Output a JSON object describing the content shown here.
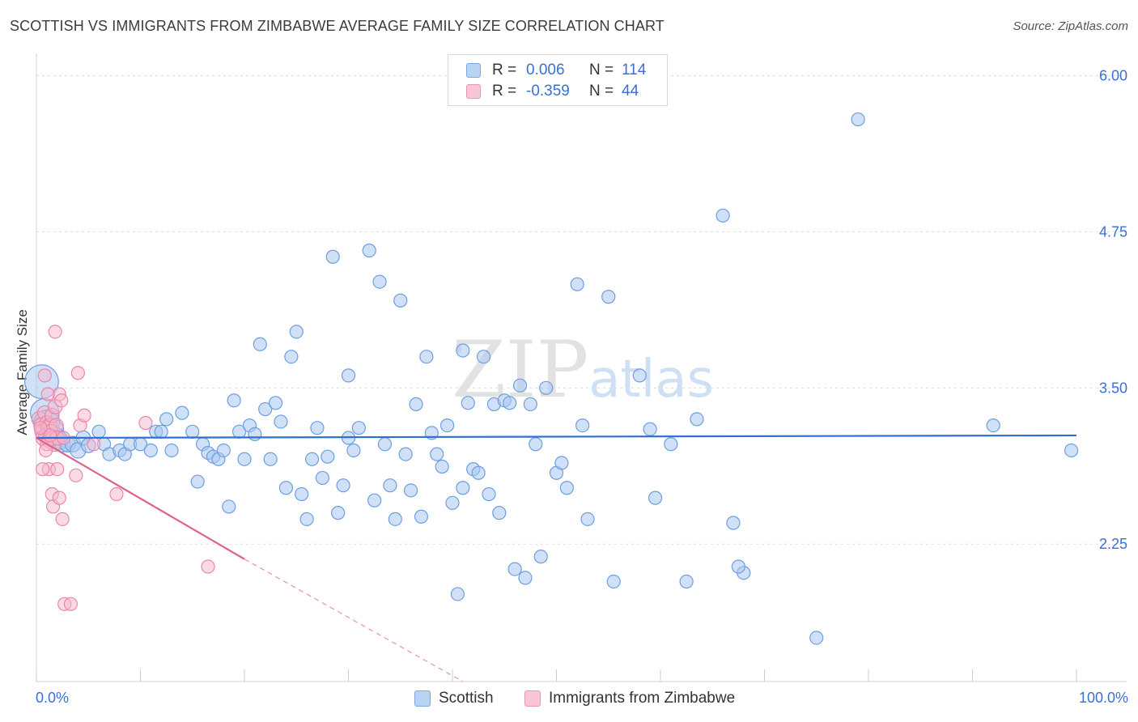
{
  "title": "SCOTTISH VS IMMIGRANTS FROM ZIMBABWE AVERAGE FAMILY SIZE CORRELATION CHART",
  "source": "Source: ZipAtlas.com",
  "watermark": "ZIPatlas",
  "colors": {
    "scottish_fill": "#a9c8f0",
    "scottish_stroke": "#6d9ee0",
    "scottish_line": "#2f6fd0",
    "zimbabwe_fill": "#f5b8cc",
    "zimbabwe_stroke": "#ea86a8",
    "zimbabwe_line": "#e0608e",
    "tick_label": "#3a6fd8",
    "grid": "#dcdcdc"
  },
  "legend": {
    "rows": [
      {
        "r_label": "R =",
        "r_value": "0.006",
        "n_label": "N =",
        "n_value": "114"
      },
      {
        "r_label": "R =",
        "r_value": "-0.359",
        "n_label": "N =",
        "n_value": "44"
      }
    ]
  },
  "chart_data": {
    "type": "scatter",
    "title": "SCOTTISH VS IMMIGRANTS FROM ZIMBABWE AVERAGE FAMILY SIZE CORRELATION CHART",
    "xlabel": "",
    "ylabel": "Average Family Size",
    "x_tick_labels": [
      "0.0%",
      "100.0%"
    ],
    "y_tick_labels": [
      "6.00",
      "4.75",
      "3.50",
      "2.25"
    ],
    "y_ticks": [
      6.0,
      4.75,
      3.5,
      2.25
    ],
    "xlim": [
      0,
      100
    ],
    "ylim": [
      1.15,
      6.1
    ],
    "grid": true,
    "legend_position": "top-center",
    "series": [
      {
        "name": "Scottish",
        "r": 0.006,
        "n": 114,
        "trend": {
          "x0": 0.0,
          "y0": 3.1,
          "x1": 100.0,
          "y1": 3.12
        },
        "points": [
          [
            0.5,
            3.55,
            26
          ],
          [
            0.8,
            3.3,
            22
          ],
          [
            1.0,
            3.22,
            20
          ],
          [
            1.5,
            3.16,
            18
          ],
          [
            1.8,
            3.1,
            16
          ],
          [
            2.2,
            3.08,
            14
          ],
          [
            2.5,
            3.05,
            12
          ],
          [
            3.0,
            3.05,
            12
          ],
          [
            3.5,
            3.05,
            12
          ],
          [
            4.0,
            3.0,
            12
          ],
          [
            4.5,
            3.1,
            11
          ],
          [
            5.0,
            3.04,
            11
          ],
          [
            6.0,
            3.15,
            10
          ],
          [
            6.5,
            3.05,
            10
          ],
          [
            7.0,
            2.97,
            10
          ],
          [
            8.0,
            3.0,
            10
          ],
          [
            8.5,
            2.97,
            10
          ],
          [
            9.0,
            3.05,
            10
          ],
          [
            10.0,
            3.05,
            10
          ],
          [
            11.0,
            3.0,
            10
          ],
          [
            11.5,
            3.15,
            10
          ],
          [
            12.0,
            3.15,
            10
          ],
          [
            12.5,
            3.25,
            10
          ],
          [
            13.0,
            3.0,
            10
          ],
          [
            14.0,
            3.3,
            10
          ],
          [
            15.0,
            3.15,
            10
          ],
          [
            15.5,
            2.75,
            10
          ],
          [
            16.0,
            3.05,
            10
          ],
          [
            16.5,
            2.98,
            10
          ],
          [
            17.0,
            2.95,
            10
          ],
          [
            17.5,
            2.93,
            10
          ],
          [
            18.0,
            3.0,
            10
          ],
          [
            18.5,
            2.55,
            10
          ],
          [
            19.0,
            3.4,
            10
          ],
          [
            19.5,
            3.15,
            10
          ],
          [
            20.0,
            2.93,
            10
          ],
          [
            20.5,
            3.2,
            10
          ],
          [
            21.0,
            3.13,
            10
          ],
          [
            21.5,
            3.85,
            10
          ],
          [
            22.0,
            3.33,
            10
          ],
          [
            22.5,
            2.93,
            10
          ],
          [
            23.0,
            3.38,
            10
          ],
          [
            23.5,
            3.23,
            10
          ],
          [
            24.0,
            2.7,
            10
          ],
          [
            24.5,
            3.75,
            10
          ],
          [
            25.0,
            3.95,
            10
          ],
          [
            25.5,
            2.65,
            10
          ],
          [
            26.0,
            2.45,
            10
          ],
          [
            26.5,
            2.93,
            10
          ],
          [
            27.0,
            3.18,
            10
          ],
          [
            27.5,
            2.78,
            10
          ],
          [
            28.0,
            2.95,
            10
          ],
          [
            28.5,
            4.55,
            10
          ],
          [
            29.0,
            2.5,
            10
          ],
          [
            29.5,
            2.72,
            10
          ],
          [
            30.0,
            3.6,
            10
          ],
          [
            30.5,
            3.0,
            10
          ],
          [
            31.0,
            3.18,
            10
          ],
          [
            32.0,
            4.6,
            10
          ],
          [
            32.5,
            2.6,
            10
          ],
          [
            33.0,
            4.35,
            10
          ],
          [
            33.5,
            3.05,
            10
          ],
          [
            34.0,
            2.72,
            10
          ],
          [
            34.5,
            2.45,
            10
          ],
          [
            35.0,
            4.2,
            10
          ],
          [
            35.5,
            2.97,
            10
          ],
          [
            36.0,
            2.68,
            10
          ],
          [
            36.5,
            3.37,
            10
          ],
          [
            37.0,
            2.47,
            10
          ],
          [
            37.5,
            3.75,
            10
          ],
          [
            38.0,
            3.14,
            10
          ],
          [
            38.5,
            2.97,
            10
          ],
          [
            39.0,
            2.87,
            10
          ],
          [
            39.5,
            3.2,
            10
          ],
          [
            40.0,
            2.58,
            10
          ],
          [
            40.5,
            1.85,
            10
          ],
          [
            41.0,
            2.7,
            10
          ],
          [
            41.5,
            3.38,
            10
          ],
          [
            41.0,
            3.8,
            10
          ],
          [
            42.0,
            2.85,
            10
          ],
          [
            42.5,
            2.82,
            10
          ],
          [
            43.0,
            3.75,
            10
          ],
          [
            43.5,
            2.65,
            10
          ],
          [
            44.0,
            3.37,
            10
          ],
          [
            44.5,
            2.5,
            10
          ],
          [
            45.0,
            3.4,
            10
          ],
          [
            45.5,
            3.38,
            10
          ],
          [
            46.0,
            2.05,
            10
          ],
          [
            46.5,
            3.52,
            10
          ],
          [
            47.0,
            1.98,
            10
          ],
          [
            47.5,
            3.37,
            10
          ],
          [
            48.0,
            3.05,
            10
          ],
          [
            48.5,
            2.15,
            10
          ],
          [
            49.0,
            3.5,
            10
          ],
          [
            50.0,
            2.82,
            10
          ],
          [
            50.5,
            2.9,
            10
          ],
          [
            51.0,
            2.7,
            10
          ],
          [
            52.0,
            4.33,
            10
          ],
          [
            55.0,
            4.23,
            10
          ],
          [
            55.5,
            1.95,
            10
          ],
          [
            58.0,
            3.6,
            10
          ],
          [
            59.0,
            3.17,
            10
          ],
          [
            59.5,
            2.62,
            10
          ],
          [
            61.0,
            3.05,
            10
          ],
          [
            63.5,
            3.25,
            10
          ],
          [
            66.0,
            4.88,
            10
          ],
          [
            67.0,
            2.42,
            10
          ],
          [
            68.0,
            2.02,
            10
          ],
          [
            79.0,
            5.65,
            10
          ],
          [
            92.0,
            3.2,
            10
          ],
          [
            99.5,
            3.0,
            10
          ],
          [
            75.0,
            1.5,
            10
          ],
          [
            67.5,
            2.07,
            10
          ],
          [
            62.5,
            1.95,
            10
          ],
          [
            53.0,
            2.45,
            10
          ],
          [
            52.5,
            3.2,
            10
          ],
          [
            30.0,
            3.1,
            10
          ]
        ]
      },
      {
        "name": "Immigrants from Zimbabwe",
        "r": -0.359,
        "n": 44,
        "trend": {
          "x0": 0.0,
          "y0": 3.1,
          "x1": 20.0,
          "y1": 2.13
        },
        "trend_dashed": {
          "x0": 20.0,
          "y0": 2.13,
          "x1": 41.0,
          "y1": 1.15
        },
        "points": [
          [
            0.3,
            3.25,
            12
          ],
          [
            0.5,
            3.2,
            12
          ],
          [
            0.6,
            3.15,
            12
          ],
          [
            0.7,
            3.1,
            12
          ],
          [
            0.8,
            3.3,
            11
          ],
          [
            0.9,
            3.12,
            11
          ],
          [
            1.0,
            3.22,
            11
          ],
          [
            1.1,
            3.18,
            11
          ],
          [
            1.2,
            3.08,
            11
          ],
          [
            1.3,
            3.2,
            11
          ],
          [
            1.4,
            3.15,
            11
          ],
          [
            1.5,
            3.28,
            11
          ],
          [
            1.6,
            3.1,
            11
          ],
          [
            1.7,
            3.05,
            11
          ],
          [
            1.8,
            3.35,
            11
          ],
          [
            1.9,
            3.2,
            11
          ],
          [
            2.0,
            3.1,
            11
          ],
          [
            2.2,
            3.45,
            10
          ],
          [
            2.4,
            3.4,
            10
          ],
          [
            2.6,
            3.1,
            10
          ],
          [
            0.8,
            3.6,
            10
          ],
          [
            1.0,
            3.05,
            10
          ],
          [
            1.2,
            2.85,
            10
          ],
          [
            1.5,
            2.65,
            10
          ],
          [
            1.6,
            2.55,
            10
          ],
          [
            2.0,
            2.85,
            10
          ],
          [
            2.2,
            2.62,
            10
          ],
          [
            2.5,
            2.45,
            10
          ],
          [
            2.7,
            1.77,
            10
          ],
          [
            3.3,
            1.77,
            10
          ],
          [
            3.8,
            2.8,
            10
          ],
          [
            4.0,
            3.62,
            10
          ],
          [
            4.2,
            3.2,
            10
          ],
          [
            4.6,
            3.28,
            10
          ],
          [
            5.5,
            3.05,
            10
          ],
          [
            7.7,
            2.65,
            10
          ],
          [
            10.5,
            3.22,
            10
          ],
          [
            16.5,
            2.07,
            10
          ],
          [
            1.8,
            3.95,
            10
          ],
          [
            0.6,
            2.85,
            10
          ],
          [
            0.9,
            3.0,
            10
          ],
          [
            1.1,
            3.45,
            10
          ],
          [
            1.3,
            3.12,
            10
          ],
          [
            0.4,
            3.18,
            10
          ]
        ]
      }
    ]
  },
  "bottom_legend": [
    {
      "label": "Scottish"
    },
    {
      "label": "Immigrants from Zimbabwe"
    }
  ]
}
